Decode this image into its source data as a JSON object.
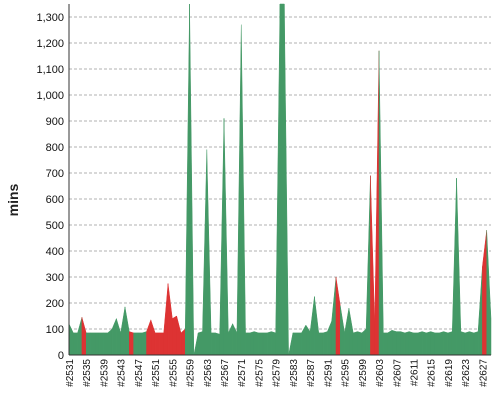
{
  "chart_data": {
    "type": "area",
    "title": "",
    "xlabel": "",
    "ylabel": "mins",
    "ylim": [
      0,
      1350
    ],
    "yticks": [
      0,
      100,
      200,
      300,
      400,
      500,
      600,
      700,
      800,
      900,
      1000,
      1100,
      1200,
      1300
    ],
    "ytick_labels": [
      "0",
      "100",
      "200",
      "300",
      "400",
      "500",
      "600",
      "700",
      "800",
      "900",
      "1,000",
      "1,100",
      "1,200",
      "1,300"
    ],
    "x_tick_labels": [
      "#2531",
      "#2535",
      "#2539",
      "#2543",
      "#2547",
      "#2551",
      "#2555",
      "#2559",
      "#2563",
      "#2567",
      "#2571",
      "#2575",
      "#2579",
      "#2583",
      "#2587",
      "#2591",
      "#2595",
      "#2599",
      "#2603",
      "#2607",
      "#2611",
      "#2615",
      "#2619",
      "#2623",
      "#2627"
    ],
    "x_start": 2531,
    "x_end": 2629,
    "grid": true,
    "colors": {
      "success": "#449966",
      "failure": "#dd3333"
    },
    "points": [
      {
        "x": 2531,
        "y": 120,
        "status": "success"
      },
      {
        "x": 2532,
        "y": 85,
        "status": "success"
      },
      {
        "x": 2533,
        "y": 85,
        "status": "success"
      },
      {
        "x": 2534,
        "y": 145,
        "status": "failure"
      },
      {
        "x": 2535,
        "y": 85,
        "status": "success"
      },
      {
        "x": 2536,
        "y": 85,
        "status": "success"
      },
      {
        "x": 2537,
        "y": 85,
        "status": "success"
      },
      {
        "x": 2538,
        "y": 85,
        "status": "success"
      },
      {
        "x": 2539,
        "y": 85,
        "status": "success"
      },
      {
        "x": 2540,
        "y": 85,
        "status": "success"
      },
      {
        "x": 2541,
        "y": 100,
        "status": "success"
      },
      {
        "x": 2542,
        "y": 140,
        "status": "success"
      },
      {
        "x": 2543,
        "y": 85,
        "status": "success"
      },
      {
        "x": 2544,
        "y": 185,
        "status": "success"
      },
      {
        "x": 2545,
        "y": 90,
        "status": "failure"
      },
      {
        "x": 2546,
        "y": 85,
        "status": "success"
      },
      {
        "x": 2547,
        "y": 85,
        "status": "success"
      },
      {
        "x": 2548,
        "y": 85,
        "status": "success"
      },
      {
        "x": 2549,
        "y": 90,
        "status": "failure"
      },
      {
        "x": 2550,
        "y": 135,
        "status": "failure"
      },
      {
        "x": 2551,
        "y": 85,
        "status": "failure"
      },
      {
        "x": 2552,
        "y": 85,
        "status": "failure"
      },
      {
        "x": 2553,
        "y": 85,
        "status": "failure"
      },
      {
        "x": 2554,
        "y": 275,
        "status": "failure"
      },
      {
        "x": 2555,
        "y": 140,
        "status": "failure"
      },
      {
        "x": 2556,
        "y": 150,
        "status": "failure"
      },
      {
        "x": 2557,
        "y": 85,
        "status": "failure"
      },
      {
        "x": 2558,
        "y": 100,
        "status": "success"
      },
      {
        "x": 2559,
        "y": 1350,
        "status": "success"
      },
      {
        "x": 2560,
        "y": 0,
        "status": "success"
      },
      {
        "x": 2561,
        "y": 85,
        "status": "success"
      },
      {
        "x": 2562,
        "y": 90,
        "status": "success"
      },
      {
        "x": 2563,
        "y": 790,
        "status": "success"
      },
      {
        "x": 2564,
        "y": 85,
        "status": "success"
      },
      {
        "x": 2565,
        "y": 85,
        "status": "success"
      },
      {
        "x": 2566,
        "y": 80,
        "status": "success"
      },
      {
        "x": 2567,
        "y": 910,
        "status": "success"
      },
      {
        "x": 2568,
        "y": 85,
        "status": "success"
      },
      {
        "x": 2569,
        "y": 120,
        "status": "success"
      },
      {
        "x": 2570,
        "y": 85,
        "status": "success"
      },
      {
        "x": 2571,
        "y": 1270,
        "status": "success"
      },
      {
        "x": 2572,
        "y": 85,
        "status": "success"
      },
      {
        "x": 2573,
        "y": 85,
        "status": "success"
      },
      {
        "x": 2574,
        "y": 90,
        "status": "success"
      },
      {
        "x": 2575,
        "y": 85,
        "status": "success"
      },
      {
        "x": 2576,
        "y": 85,
        "status": "success"
      },
      {
        "x": 2577,
        "y": 85,
        "status": "success"
      },
      {
        "x": 2578,
        "y": 90,
        "status": "success"
      },
      {
        "x": 2579,
        "y": 85,
        "status": "success"
      },
      {
        "x": 2580,
        "y": 1350,
        "status": "success"
      },
      {
        "x": 2581,
        "y": 1350,
        "status": "success"
      },
      {
        "x": 2582,
        "y": 0,
        "status": "success"
      },
      {
        "x": 2583,
        "y": 85,
        "status": "success"
      },
      {
        "x": 2584,
        "y": 85,
        "status": "success"
      },
      {
        "x": 2585,
        "y": 85,
        "status": "success"
      },
      {
        "x": 2586,
        "y": 115,
        "status": "success"
      },
      {
        "x": 2587,
        "y": 90,
        "status": "success"
      },
      {
        "x": 2588,
        "y": 225,
        "status": "success"
      },
      {
        "x": 2589,
        "y": 85,
        "status": "success"
      },
      {
        "x": 2590,
        "y": 85,
        "status": "success"
      },
      {
        "x": 2591,
        "y": 90,
        "status": "success"
      },
      {
        "x": 2592,
        "y": 130,
        "status": "success"
      },
      {
        "x": 2593,
        "y": 300,
        "status": "failure"
      },
      {
        "x": 2594,
        "y": 190,
        "status": "success"
      },
      {
        "x": 2595,
        "y": 85,
        "status": "success"
      },
      {
        "x": 2596,
        "y": 180,
        "status": "success"
      },
      {
        "x": 2597,
        "y": 85,
        "status": "success"
      },
      {
        "x": 2598,
        "y": 90,
        "status": "success"
      },
      {
        "x": 2599,
        "y": 85,
        "status": "success"
      },
      {
        "x": 2600,
        "y": 100,
        "status": "success"
      },
      {
        "x": 2601,
        "y": 690,
        "status": "failure"
      },
      {
        "x": 2602,
        "y": 120,
        "status": "failure"
      },
      {
        "x": 2603,
        "y": 1170,
        "status": "success"
      },
      {
        "x": 2604,
        "y": 85,
        "status": "success"
      },
      {
        "x": 2605,
        "y": 85,
        "status": "success"
      },
      {
        "x": 2606,
        "y": 95,
        "status": "success"
      },
      {
        "x": 2607,
        "y": 90,
        "status": "success"
      },
      {
        "x": 2608,
        "y": 90,
        "status": "success"
      },
      {
        "x": 2609,
        "y": 85,
        "status": "success"
      },
      {
        "x": 2610,
        "y": 90,
        "status": "success"
      },
      {
        "x": 2611,
        "y": 85,
        "status": "success"
      },
      {
        "x": 2612,
        "y": 85,
        "status": "success"
      },
      {
        "x": 2613,
        "y": 90,
        "status": "success"
      },
      {
        "x": 2614,
        "y": 85,
        "status": "success"
      },
      {
        "x": 2615,
        "y": 90,
        "status": "success"
      },
      {
        "x": 2616,
        "y": 85,
        "status": "success"
      },
      {
        "x": 2617,
        "y": 85,
        "status": "success"
      },
      {
        "x": 2618,
        "y": 90,
        "status": "success"
      },
      {
        "x": 2619,
        "y": 85,
        "status": "success"
      },
      {
        "x": 2620,
        "y": 90,
        "status": "success"
      },
      {
        "x": 2621,
        "y": 680,
        "status": "success"
      },
      {
        "x": 2622,
        "y": 90,
        "status": "success"
      },
      {
        "x": 2623,
        "y": 85,
        "status": "success"
      },
      {
        "x": 2624,
        "y": 90,
        "status": "success"
      },
      {
        "x": 2625,
        "y": 85,
        "status": "success"
      },
      {
        "x": 2626,
        "y": 90,
        "status": "success"
      },
      {
        "x": 2627,
        "y": 340,
        "status": "failure"
      },
      {
        "x": 2628,
        "y": 480,
        "status": "success"
      },
      {
        "x": 2629,
        "y": 140,
        "status": "success"
      }
    ]
  }
}
